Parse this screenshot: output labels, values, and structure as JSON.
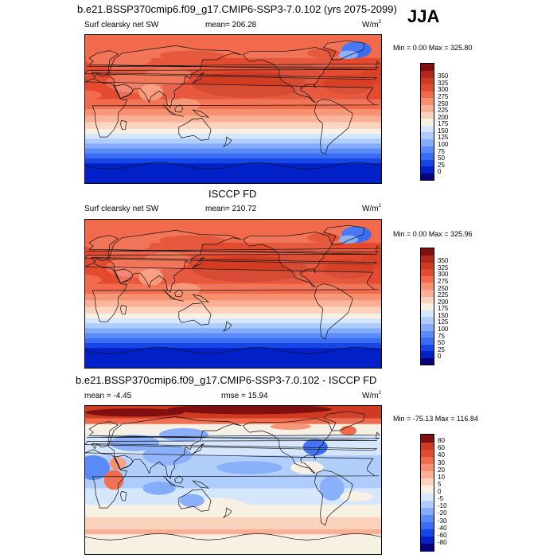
{
  "header": {
    "main_title": "b.e21.BSSP370cmip6.f09_g17.CMIP6-SSP3-7.0.102 (yrs 2075-2099)",
    "season": "JJA"
  },
  "colors": {
    "abs_levels": [
      "#08007a",
      "#0020c8",
      "#1646e6",
      "#3a6df5",
      "#5a8cf8",
      "#84acfa",
      "#aecdfc",
      "#d5e6fd",
      "#f7f1e4",
      "#fbd3bd",
      "#f9b094",
      "#f7906e",
      "#f06a4b",
      "#e44b2e",
      "#cf3a21",
      "#b3261a",
      "#801010"
    ],
    "diff_levels": [
      "#08007a",
      "#0020c8",
      "#1646e6",
      "#3a6df5",
      "#5a8cf8",
      "#84acfa",
      "#aecdfc",
      "#d5e6fd",
      "#f7f1e4",
      "#fbd3bd",
      "#f9b094",
      "#f7906e",
      "#f06a4b",
      "#e44b2e",
      "#cf3a21",
      "#801010"
    ]
  },
  "panels": [
    {
      "left_label": "Surf clearsky net SW",
      "mean_text": "mean= 206.28",
      "units": "W/m",
      "units_sup": "2",
      "minmax_text": "Min =   0.00 Max = 325.80"
    },
    {
      "center_title": "ISCCP FD",
      "left_label": "Surf clearsky net SW",
      "mean_text": "mean= 210.72",
      "units": "W/m",
      "units_sup": "2",
      "minmax_text": "Min =   0.00 Max = 325.96"
    },
    {
      "center_title": "b.e21.BSSP370cmip6.f09_g17.CMIP6-SSP3-7.0.102 - ISCCP FD",
      "mean_text": "mean =  -4.45",
      "rmse_text": "rmse =  15.94",
      "units": "W/m",
      "units_sup": "2",
      "minmax_text": "Min = -75.13 Max = 116.84"
    }
  ],
  "chart_data": [
    {
      "type": "heatmap",
      "title": "b.e21.BSSP370cmip6.f09_g17.CMIP6-SSP3-7.0.102 (yrs 2075-2099)",
      "variable": "Surf clearsky net SW",
      "units": "W/m2",
      "mean": 206.28,
      "min": 0.0,
      "max": 325.8,
      "colorbar_levels": [
        0,
        25,
        50,
        75,
        100,
        125,
        150,
        175,
        200,
        225,
        250,
        275,
        300,
        325,
        350
      ]
    },
    {
      "type": "heatmap",
      "title": "ISCCP FD",
      "variable": "Surf clearsky net SW",
      "units": "W/m2",
      "mean": 210.72,
      "min": 0.0,
      "max": 325.96,
      "colorbar_levels": [
        0,
        25,
        50,
        75,
        100,
        125,
        150,
        175,
        200,
        225,
        250,
        275,
        300,
        325,
        350
      ]
    },
    {
      "type": "heatmap",
      "title": "b.e21.BSSP370cmip6.f09_g17.CMIP6-SSP3-7.0.102 - ISCCP FD",
      "units": "W/m2",
      "mean": -4.45,
      "rmse": 15.94,
      "min": -75.13,
      "max": 116.84,
      "colorbar_levels": [
        -80,
        -60,
        -40,
        -30,
        -20,
        -10,
        -5,
        0,
        5,
        10,
        20,
        30,
        40,
        60,
        80
      ]
    }
  ]
}
